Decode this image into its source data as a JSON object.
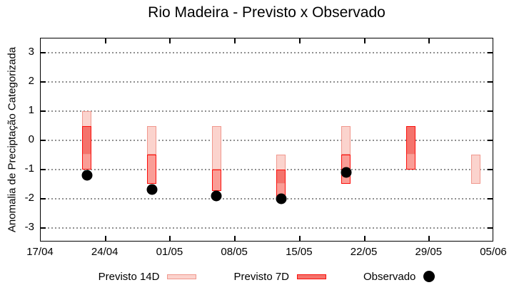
{
  "title": "Rio Madeira - Previsto x Observado",
  "y_axis": {
    "label": "Anomalia de Preciptação Categorizada",
    "tick_labels": [
      "3",
      "2",
      "1",
      "0",
      "-1",
      "-2",
      "-3"
    ],
    "tick_values": [
      3,
      2,
      1,
      0,
      -1,
      -2,
      -3
    ],
    "range": [
      -3.5,
      3.5
    ]
  },
  "x_axis": {
    "tick_labels": [
      "17/04",
      "24/04",
      "01/05",
      "08/05",
      "15/05",
      "22/05",
      "29/05",
      "05/06"
    ],
    "tick_day_offsets": [
      0,
      7,
      14,
      21,
      28,
      35,
      42,
      49
    ],
    "span_days": 49
  },
  "legend": {
    "items": [
      {
        "label": "Previsto 14D",
        "swatch": "range-14d"
      },
      {
        "label": "Previsto 7D",
        "swatch": "range-7d"
      },
      {
        "label": "Observado",
        "swatch": "dot"
      }
    ]
  },
  "colors": {
    "forecast14_fill": "#fbd3cd",
    "forecast14_border": "#f0988e",
    "forecast7_fill": "#fa9d96",
    "forecast7_overlap_fill": "#f4736c",
    "forecast7_border": "#fb0f0b",
    "observed": "#000000",
    "grid": "#909090",
    "axis": "#000000"
  },
  "chart_data": {
    "type": "range-bar+scatter",
    "title": "Rio Madeira - Previsto x Observado",
    "xlabel": "",
    "ylabel": "Anomalia de Preciptação Categorizada",
    "ylim": [
      -3.5,
      3.5
    ],
    "grid": "horizontal dotted",
    "legend_position": "bottom center",
    "x_dates": [
      "22/04",
      "29/04",
      "06/05",
      "13/05",
      "20/05",
      "27/05",
      "03/06"
    ],
    "day_offsets": [
      5,
      12,
      19,
      26,
      33,
      40,
      47
    ],
    "series": [
      {
        "name": "Previsto 14D",
        "type": "range",
        "ranges": [
          [
            -0.5,
            1.0
          ],
          [
            -0.5,
            0.5
          ],
          [
            -1.0,
            0.5
          ],
          [
            -1.5,
            -0.5
          ],
          [
            -0.5,
            0.5
          ],
          [
            -0.5,
            0.5
          ],
          [
            -1.5,
            -0.5
          ]
        ]
      },
      {
        "name": "Previsto 7D",
        "type": "range",
        "ranges": [
          [
            -1.0,
            0.5
          ],
          [
            -1.5,
            -0.5
          ],
          [
            -1.75,
            -1.0
          ],
          [
            -2.0,
            -1.0
          ],
          [
            -1.5,
            -0.5
          ],
          [
            -1.0,
            0.5
          ],
          null
        ]
      },
      {
        "name": "Observado",
        "type": "point",
        "values": [
          -1.2,
          -1.7,
          -1.9,
          -2.0,
          -1.1,
          null,
          null
        ]
      }
    ]
  }
}
